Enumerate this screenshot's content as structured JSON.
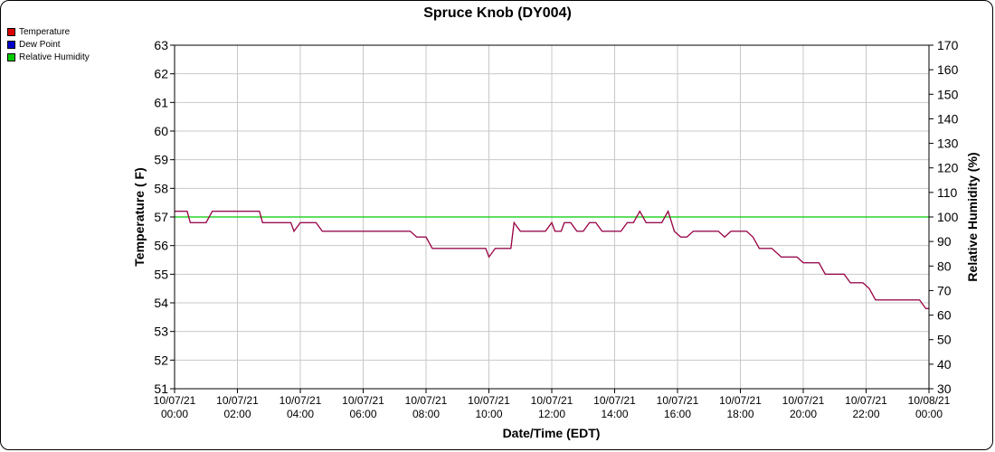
{
  "chart_data": {
    "type": "line",
    "title": "Spruce Knob (DY004)",
    "xlabel": "Date/Time (EDT)",
    "ylabel_left": "Temperature ( F)",
    "ylabel_right": "Relative Humidity (%)",
    "y_left_range": [
      51,
      63
    ],
    "y_right_range": [
      30,
      170
    ],
    "y_left_ticks": [
      "51",
      "52",
      "53",
      "54",
      "55",
      "56",
      "57",
      "58",
      "59",
      "60",
      "61",
      "62",
      "63"
    ],
    "y_right_ticks": [
      "30",
      "40",
      "50",
      "60",
      "70",
      "80",
      "90",
      "100",
      "110",
      "120",
      "130",
      "140",
      "150",
      "160",
      "170"
    ],
    "x_range_hours": [
      0,
      24
    ],
    "x_ticks": [
      {
        "date": "10/07/21",
        "time": "00:00"
      },
      {
        "date": "10/07/21",
        "time": "02:00"
      },
      {
        "date": "10/07/21",
        "time": "04:00"
      },
      {
        "date": "10/07/21",
        "time": "06:00"
      },
      {
        "date": "10/07/21",
        "time": "08:00"
      },
      {
        "date": "10/07/21",
        "time": "10:00"
      },
      {
        "date": "10/07/21",
        "time": "12:00"
      },
      {
        "date": "10/07/21",
        "time": "14:00"
      },
      {
        "date": "10/07/21",
        "time": "16:00"
      },
      {
        "date": "10/07/21",
        "time": "18:00"
      },
      {
        "date": "10/07/21",
        "time": "20:00"
      },
      {
        "date": "10/07/21",
        "time": "22:00"
      },
      {
        "date": "10/08/21",
        "time": "00:00"
      }
    ],
    "grid": true,
    "legend_position": "top-left",
    "series": [
      {
        "name": "Temperature",
        "color": "#dd0000",
        "axis": "left",
        "points": [
          [
            0.0,
            57.2
          ],
          [
            0.4,
            57.2
          ],
          [
            0.5,
            56.8
          ],
          [
            1.0,
            56.8
          ],
          [
            1.2,
            57.2
          ],
          [
            2.0,
            57.2
          ],
          [
            2.7,
            57.2
          ],
          [
            2.8,
            56.8
          ],
          [
            3.7,
            56.8
          ],
          [
            3.8,
            56.5
          ],
          [
            4.0,
            56.8
          ],
          [
            4.5,
            56.8
          ],
          [
            4.7,
            56.5
          ],
          [
            6.0,
            56.5
          ],
          [
            7.5,
            56.5
          ],
          [
            7.7,
            56.3
          ],
          [
            8.0,
            56.3
          ],
          [
            8.2,
            55.9
          ],
          [
            9.9,
            55.9
          ],
          [
            10.0,
            55.6
          ],
          [
            10.2,
            55.9
          ],
          [
            10.7,
            55.9
          ],
          [
            10.8,
            56.8
          ],
          [
            11.0,
            56.5
          ],
          [
            11.8,
            56.5
          ],
          [
            12.0,
            56.8
          ],
          [
            12.1,
            56.5
          ],
          [
            12.3,
            56.5
          ],
          [
            12.4,
            56.8
          ],
          [
            12.6,
            56.8
          ],
          [
            12.8,
            56.5
          ],
          [
            13.0,
            56.5
          ],
          [
            13.2,
            56.8
          ],
          [
            13.4,
            56.8
          ],
          [
            13.6,
            56.5
          ],
          [
            14.2,
            56.5
          ],
          [
            14.4,
            56.8
          ],
          [
            14.6,
            56.8
          ],
          [
            14.8,
            57.2
          ],
          [
            15.0,
            56.8
          ],
          [
            15.5,
            56.8
          ],
          [
            15.7,
            57.2
          ],
          [
            15.9,
            56.5
          ],
          [
            16.1,
            56.3
          ],
          [
            16.3,
            56.3
          ],
          [
            16.5,
            56.5
          ],
          [
            17.3,
            56.5
          ],
          [
            17.5,
            56.3
          ],
          [
            17.7,
            56.5
          ],
          [
            18.2,
            56.5
          ],
          [
            18.4,
            56.3
          ],
          [
            18.6,
            55.9
          ],
          [
            19.0,
            55.9
          ],
          [
            19.3,
            55.6
          ],
          [
            19.8,
            55.6
          ],
          [
            20.0,
            55.4
          ],
          [
            20.5,
            55.4
          ],
          [
            20.7,
            55.0
          ],
          [
            21.3,
            55.0
          ],
          [
            21.5,
            54.7
          ],
          [
            21.9,
            54.7
          ],
          [
            22.1,
            54.5
          ],
          [
            22.3,
            54.1
          ],
          [
            23.7,
            54.1
          ],
          [
            23.9,
            53.8
          ],
          [
            24.0,
            53.8
          ]
        ]
      },
      {
        "name": "Dew Point",
        "color": "#0000cc",
        "axis": "left",
        "points": [
          [
            0.0,
            57.2
          ],
          [
            0.4,
            57.2
          ],
          [
            0.5,
            56.8
          ],
          [
            1.0,
            56.8
          ],
          [
            1.2,
            57.2
          ],
          [
            2.0,
            57.2
          ],
          [
            2.7,
            57.2
          ],
          [
            2.8,
            56.8
          ],
          [
            3.7,
            56.8
          ],
          [
            3.8,
            56.5
          ],
          [
            4.0,
            56.8
          ],
          [
            4.5,
            56.8
          ],
          [
            4.7,
            56.5
          ],
          [
            6.0,
            56.5
          ],
          [
            7.5,
            56.5
          ],
          [
            7.7,
            56.3
          ],
          [
            8.0,
            56.3
          ],
          [
            8.2,
            55.9
          ],
          [
            9.9,
            55.9
          ],
          [
            10.0,
            55.6
          ],
          [
            10.2,
            55.9
          ],
          [
            10.7,
            55.9
          ],
          [
            10.8,
            56.8
          ],
          [
            11.0,
            56.5
          ],
          [
            11.8,
            56.5
          ],
          [
            12.0,
            56.8
          ],
          [
            12.1,
            56.5
          ],
          [
            12.3,
            56.5
          ],
          [
            12.4,
            56.8
          ],
          [
            12.6,
            56.8
          ],
          [
            12.8,
            56.5
          ],
          [
            13.0,
            56.5
          ],
          [
            13.2,
            56.8
          ],
          [
            13.4,
            56.8
          ],
          [
            13.6,
            56.5
          ],
          [
            14.2,
            56.5
          ],
          [
            14.4,
            56.8
          ],
          [
            14.6,
            56.8
          ],
          [
            14.8,
            57.2
          ],
          [
            15.0,
            56.8
          ],
          [
            15.5,
            56.8
          ],
          [
            15.7,
            57.2
          ],
          [
            15.9,
            56.5
          ],
          [
            16.1,
            56.3
          ],
          [
            16.3,
            56.3
          ],
          [
            16.5,
            56.5
          ],
          [
            17.3,
            56.5
          ],
          [
            17.5,
            56.3
          ],
          [
            17.7,
            56.5
          ],
          [
            18.2,
            56.5
          ],
          [
            18.4,
            56.3
          ],
          [
            18.6,
            55.9
          ],
          [
            19.0,
            55.9
          ],
          [
            19.3,
            55.6
          ],
          [
            19.8,
            55.6
          ],
          [
            20.0,
            55.4
          ],
          [
            20.5,
            55.4
          ],
          [
            20.7,
            55.0
          ],
          [
            21.3,
            55.0
          ],
          [
            21.5,
            54.7
          ],
          [
            21.9,
            54.7
          ],
          [
            22.1,
            54.5
          ],
          [
            22.3,
            54.1
          ],
          [
            23.7,
            54.1
          ],
          [
            23.9,
            53.8
          ],
          [
            24.0,
            53.8
          ]
        ]
      },
      {
        "name": "Relative Humidity",
        "color": "#00cc00",
        "axis": "right",
        "points": [
          [
            0,
            100
          ],
          [
            24,
            100
          ]
        ]
      }
    ]
  }
}
